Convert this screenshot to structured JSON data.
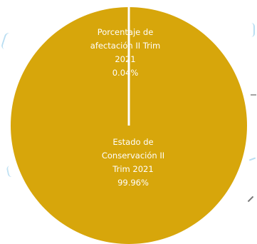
{
  "chart_data": {
    "type": "pie",
    "title": "",
    "slices": [
      {
        "label_lines": [
          "Porcentaje de",
          "afectación II Trim",
          "2021"
        ],
        "value_text": "0.04%",
        "value": 0.04,
        "color": "#D7A60B"
      },
      {
        "label_lines": [
          "Estado de",
          "Conservación II",
          "Trim 2021"
        ],
        "value_text": "99.96%",
        "value": 99.96,
        "color": "#D7A60B"
      }
    ],
    "separator_color": "#ffffff",
    "label_color": "#ffffff"
  }
}
